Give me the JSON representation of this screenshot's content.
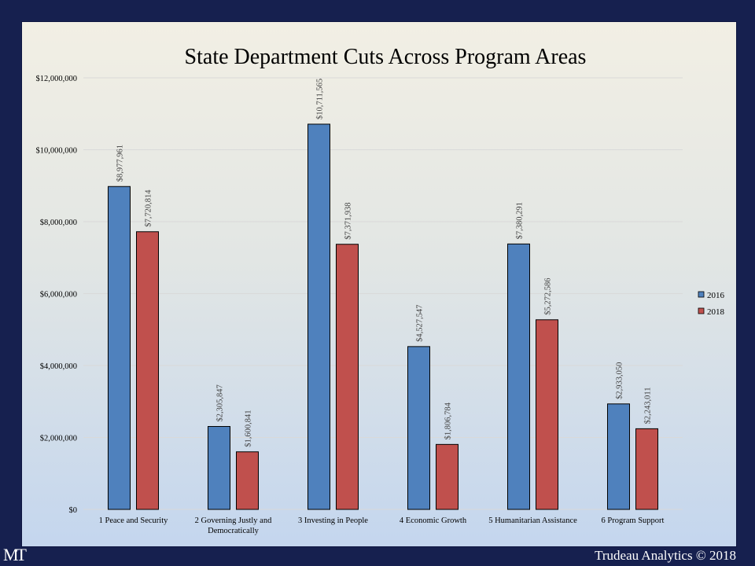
{
  "chart_data": {
    "type": "bar",
    "title": "State Department Cuts Across Program Areas",
    "categories": [
      "1 Peace and Security",
      "2 Governing Justly and Democratically",
      "3 Investing in People",
      "4 Economic Growth",
      "5 Humanitarian Assistance",
      "6 Program Support"
    ],
    "series": [
      {
        "name": "2016",
        "color": "#4f81bd",
        "values": [
          8977961,
          2305847,
          10711565,
          4527547,
          7380291,
          2933050
        ],
        "labels": [
          "$8,977,961",
          "$2,305,847",
          "$10,711,565",
          "$4,527,547",
          "$7,380,291",
          "$2,933,050"
        ]
      },
      {
        "name": "2018",
        "color": "#c0504d",
        "values": [
          7720814,
          1600841,
          7371938,
          1806784,
          5272586,
          2243011
        ],
        "labels": [
          "$7,720,814",
          "$1,600,841",
          "$7,371,938",
          "$1,806,784",
          "$5,272,586",
          "$2,243,011"
        ]
      }
    ],
    "ylim": [
      0,
      12000000
    ],
    "yticks": [
      0,
      2000000,
      4000000,
      6000000,
      8000000,
      10000000,
      12000000
    ],
    "ytick_labels": [
      "$0",
      "$2,000,000",
      "$4,000,000",
      "$6,000,000",
      "$8,000,000",
      "$10,000,000",
      "$12,000,000"
    ],
    "xlabel": "",
    "ylabel": "",
    "grid": true,
    "legend_position": "right"
  },
  "footer": {
    "copyright": "Trudeau Analytics © 2018",
    "logo_text": "MT"
  },
  "colors": {
    "frame": "#16204f",
    "grid": "#d9d9d9",
    "text": "#000000",
    "bar_outline": "#000000"
  }
}
